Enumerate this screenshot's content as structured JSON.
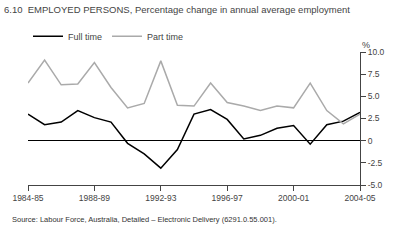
{
  "chart_data": {
    "type": "line",
    "title": "6.10  EMPLOYED PERSONS, Percentage change in annual average employment",
    "source": "Source: Labour Force, Australia, Detailed – Electronic Delivery (6291.0.55.001).",
    "ylabel": "%",
    "categories": [
      "1984-85",
      null,
      null,
      null,
      "1988-89",
      null,
      null,
      null,
      "1992-93",
      null,
      null,
      null,
      "1996-97",
      null,
      null,
      null,
      "2000-01",
      null,
      null,
      null,
      "2004-05"
    ],
    "series": [
      {
        "name": "Full time",
        "color": "#000000",
        "values": [
          3.0,
          1.8,
          2.1,
          3.4,
          2.6,
          2.1,
          -0.3,
          -1.5,
          -3.1,
          -1.0,
          3.0,
          3.5,
          2.4,
          0.2,
          0.6,
          1.4,
          1.7,
          -0.4,
          1.8,
          2.2,
          3.2
        ]
      },
      {
        "name": "Part time",
        "color": "#aaaaaa",
        "values": [
          6.5,
          9.1,
          6.3,
          6.4,
          8.8,
          6.0,
          3.7,
          4.2,
          9.0,
          4.0,
          3.9,
          6.5,
          4.3,
          3.9,
          3.4,
          3.9,
          3.7,
          6.5,
          3.4,
          1.9,
          3.0
        ]
      }
    ],
    "ylim": [
      -5.0,
      10.0
    ],
    "yticks": [
      {
        "value": -5.0,
        "label": "-5.0"
      },
      -2.5,
      0,
      2.5,
      {
        "value": 5.0,
        "label": "5.0"
      },
      7.5,
      {
        "value": 10.0,
        "label": "10.0"
      }
    ],
    "grid": false,
    "legend": "top left"
  }
}
